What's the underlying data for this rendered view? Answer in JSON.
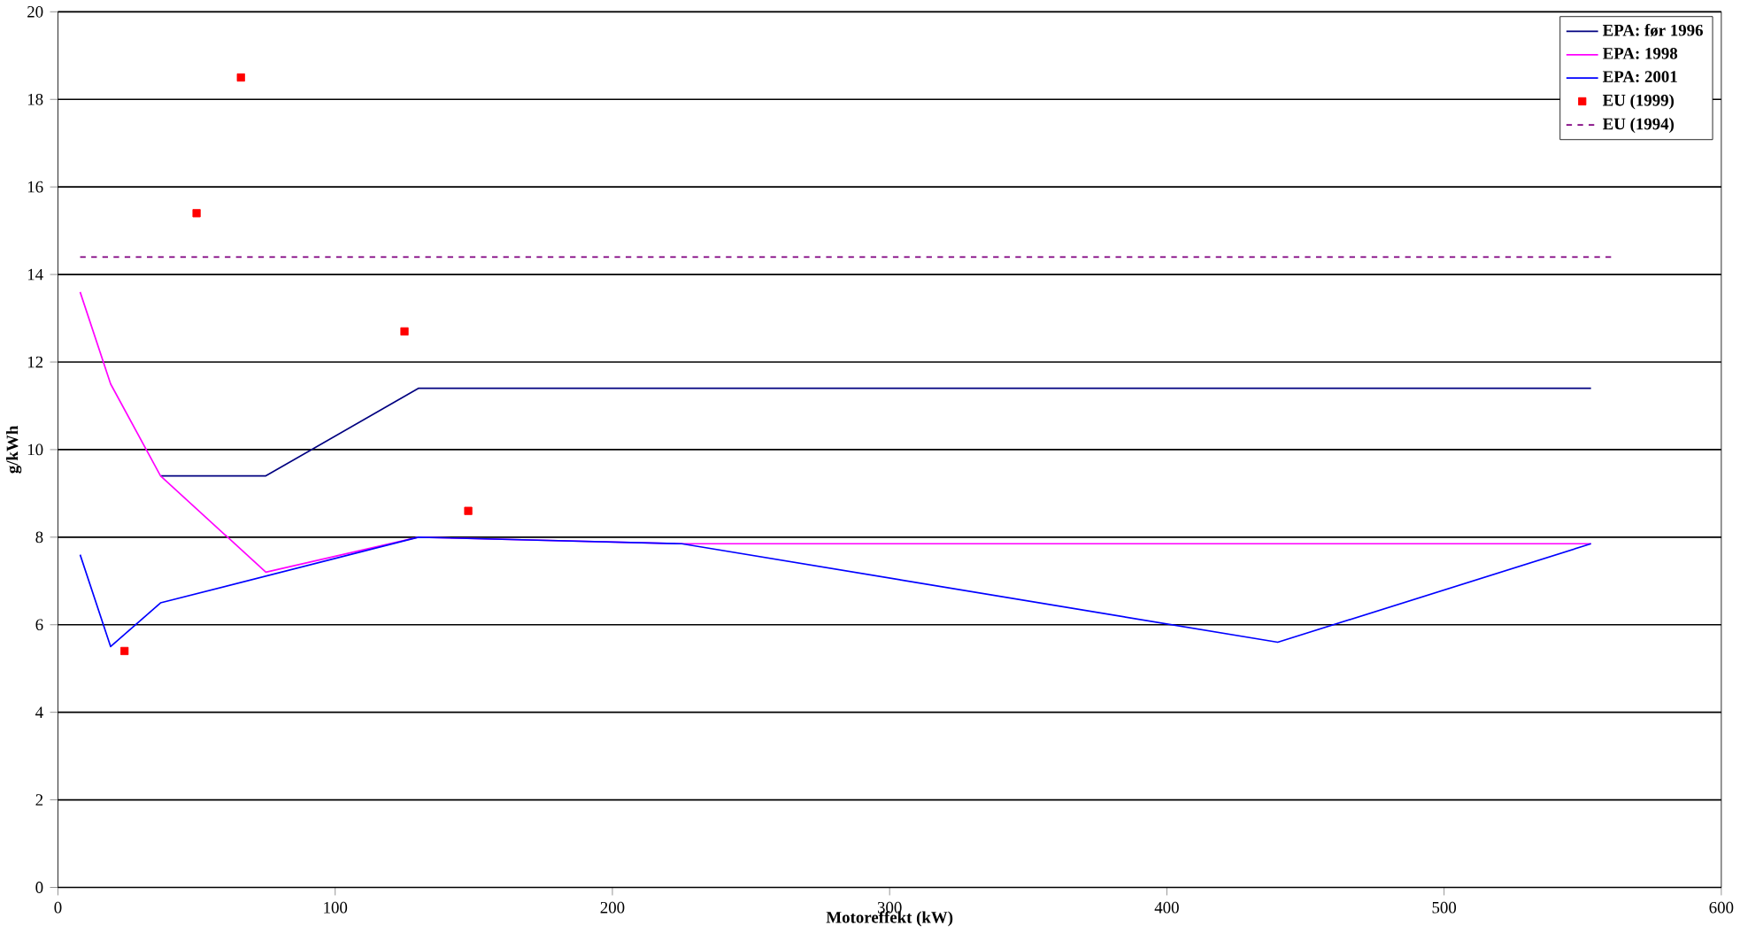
{
  "chart_data": {
    "type": "line",
    "xlabel": "Motoreffekt (kW)",
    "ylabel": "g/kWh",
    "xlim": [
      0,
      600
    ],
    "xticks": [
      0,
      100,
      200,
      300,
      400,
      500,
      600
    ],
    "ylim": [
      0,
      20
    ],
    "yticks": [
      0,
      2,
      4,
      6,
      8,
      10,
      12,
      14,
      16,
      18,
      20
    ],
    "grid": "y",
    "legend": "top right",
    "series": [
      {
        "name": "EPA: før 1996",
        "color": "#000080",
        "x": [
          37,
          75,
          130,
          553
        ],
        "values": [
          9.4,
          9.4,
          11.4,
          11.4
        ]
      },
      {
        "name": "EPA: 1998",
        "color": "#ff00ff",
        "x": [
          8,
          19,
          37,
          75,
          130,
          225,
          553
        ],
        "values": [
          13.6,
          11.5,
          9.4,
          7.2,
          8.0,
          7.85,
          7.85
        ]
      },
      {
        "name": "EPA: 2001",
        "color": "#0000ff",
        "x": [
          8,
          19,
          37,
          130,
          225,
          440,
          553
        ],
        "values": [
          7.6,
          5.5,
          6.5,
          8.0,
          7.85,
          5.6,
          7.85
        ]
      },
      {
        "name": "EU (1999)",
        "color": "#ff0000",
        "type": "scatter",
        "marker": "square",
        "x": [
          24,
          50,
          66,
          125,
          148
        ],
        "values": [
          5.4,
          15.4,
          18.5,
          12.7,
          8.6
        ]
      },
      {
        "name": "EU (1994)",
        "color": "#800080",
        "line_style": "dashed",
        "x": [
          8,
          561
        ],
        "values": [
          14.4,
          14.4
        ]
      }
    ]
  }
}
